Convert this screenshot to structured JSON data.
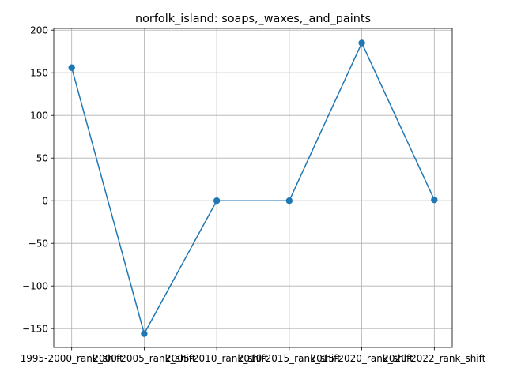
{
  "chart_data": {
    "type": "line",
    "title": "norfolk_island: soaps,_waxes,_and_paints",
    "xlabel": "",
    "ylabel": "",
    "categories": [
      "1995-2000_rank_shift",
      "2000-2005_rank_shift",
      "2005-2010_rank_shift",
      "2010-2015_rank_shift",
      "2015-2020_rank_shift",
      "2020-2022_rank_shift"
    ],
    "series": [
      {
        "values": [
          156,
          -156,
          0,
          0,
          185,
          1
        ]
      }
    ],
    "ylim": [
      -172.05,
      202.05
    ],
    "yticks": [
      -150,
      -100,
      -50,
      0,
      50,
      100,
      150,
      200
    ],
    "ytick_labels": [
      "−150",
      "−100",
      "−50",
      "0",
      "50",
      "100",
      "150",
      "200"
    ],
    "grid": true,
    "line_color": "#1f77b4",
    "marker": "circle"
  }
}
